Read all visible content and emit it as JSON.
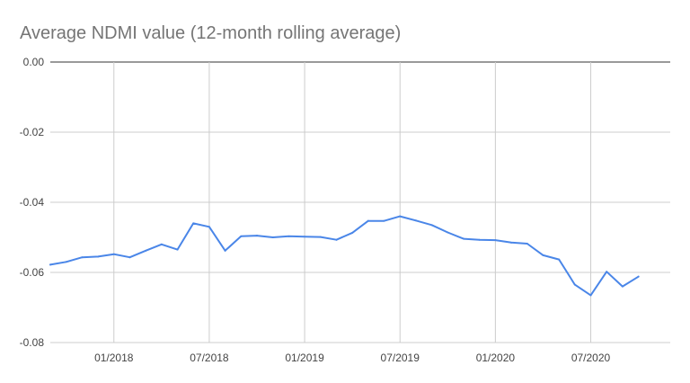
{
  "chart_data": {
    "type": "line",
    "title": "Average NDMI value (12-month rolling average)",
    "xlabel": "",
    "ylabel": "",
    "ylim": [
      -0.08,
      0.0
    ],
    "yticks": [
      0.0,
      -0.02,
      -0.04,
      -0.06,
      -0.08
    ],
    "ytick_labels": [
      "0.00",
      "-0.02",
      "-0.04",
      "-0.06",
      "-0.08"
    ],
    "xlim": [
      "2017-09",
      "2020-12"
    ],
    "xticks": [
      {
        "date": "2018-01",
        "label": "01/2018"
      },
      {
        "date": "2018-07",
        "label": "07/2018"
      },
      {
        "date": "2019-01",
        "label": "01/2019"
      },
      {
        "date": "2019-07",
        "label": "07/2019"
      },
      {
        "date": "2020-01",
        "label": "01/2020"
      },
      {
        "date": "2020-07",
        "label": "07/2020"
      }
    ],
    "grid": true,
    "legend": "none",
    "series": [
      {
        "color": "#4a86e8",
        "points": [
          {
            "x": "2017-09",
            "y": -0.0578
          },
          {
            "x": "2017-10",
            "y": -0.057
          },
          {
            "x": "2017-11",
            "y": -0.0557
          },
          {
            "x": "2017-12",
            "y": -0.0555
          },
          {
            "x": "2018-01",
            "y": -0.0548
          },
          {
            "x": "2018-02",
            "y": -0.0557
          },
          {
            "x": "2018-03",
            "y": -0.0538
          },
          {
            "x": "2018-04",
            "y": -0.052
          },
          {
            "x": "2018-05",
            "y": -0.0535
          },
          {
            "x": "2018-06",
            "y": -0.046
          },
          {
            "x": "2018-07",
            "y": -0.047
          },
          {
            "x": "2018-08",
            "y": -0.0538
          },
          {
            "x": "2018-09",
            "y": -0.0497
          },
          {
            "x": "2018-10",
            "y": -0.0495
          },
          {
            "x": "2018-11",
            "y": -0.05
          },
          {
            "x": "2018-12",
            "y": -0.0497
          },
          {
            "x": "2019-01",
            "y": -0.0498
          },
          {
            "x": "2019-02",
            "y": -0.0499
          },
          {
            "x": "2019-03",
            "y": -0.0507
          },
          {
            "x": "2019-04",
            "y": -0.0487
          },
          {
            "x": "2019-05",
            "y": -0.0453
          },
          {
            "x": "2019-06",
            "y": -0.0453
          },
          {
            "x": "2019-07",
            "y": -0.044
          },
          {
            "x": "2019-08",
            "y": -0.0452
          },
          {
            "x": "2019-09",
            "y": -0.0465
          },
          {
            "x": "2019-10",
            "y": -0.0486
          },
          {
            "x": "2019-11",
            "y": -0.0504
          },
          {
            "x": "2019-12",
            "y": -0.0507
          },
          {
            "x": "2020-01",
            "y": -0.0508
          },
          {
            "x": "2020-02",
            "y": -0.0515
          },
          {
            "x": "2020-03",
            "y": -0.0518
          },
          {
            "x": "2020-04",
            "y": -0.0551
          },
          {
            "x": "2020-05",
            "y": -0.0563
          },
          {
            "x": "2020-06",
            "y": -0.0635
          },
          {
            "x": "2020-07",
            "y": -0.0665
          },
          {
            "x": "2020-08",
            "y": -0.0598
          },
          {
            "x": "2020-09",
            "y": -0.064
          },
          {
            "x": "2020-10",
            "y": -0.0612
          }
        ]
      }
    ]
  }
}
